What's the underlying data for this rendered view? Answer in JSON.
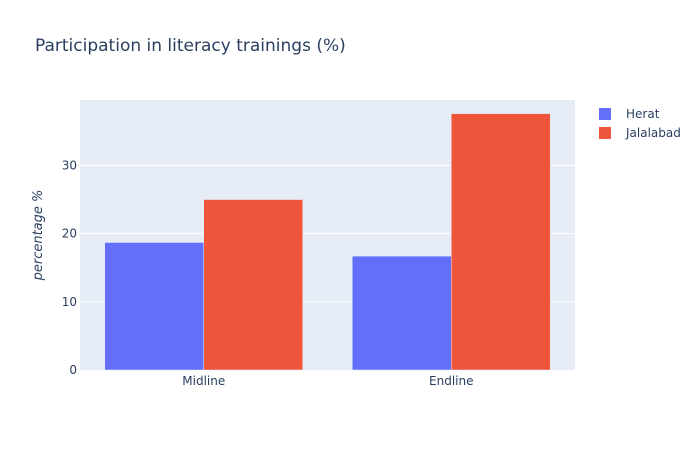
{
  "chart_data": {
    "type": "bar",
    "title": "Participation in literacy trainings (%)",
    "xlabel": "",
    "ylabel": "percentage %",
    "categories": [
      "Midline",
      "Endline"
    ],
    "series": [
      {
        "name": "Herat",
        "values": [
          18.7,
          16.7
        ],
        "color": "#636efa"
      },
      {
        "name": "Jalalabad",
        "values": [
          25.0,
          37.6
        ],
        "color": "#ef553b"
      }
    ],
    "ylim": [
      0,
      39.6
    ],
    "yticks": [
      0,
      10,
      20,
      30
    ],
    "grid": true,
    "legend_position": "top-right",
    "plot_background": "#e5ecf6"
  }
}
